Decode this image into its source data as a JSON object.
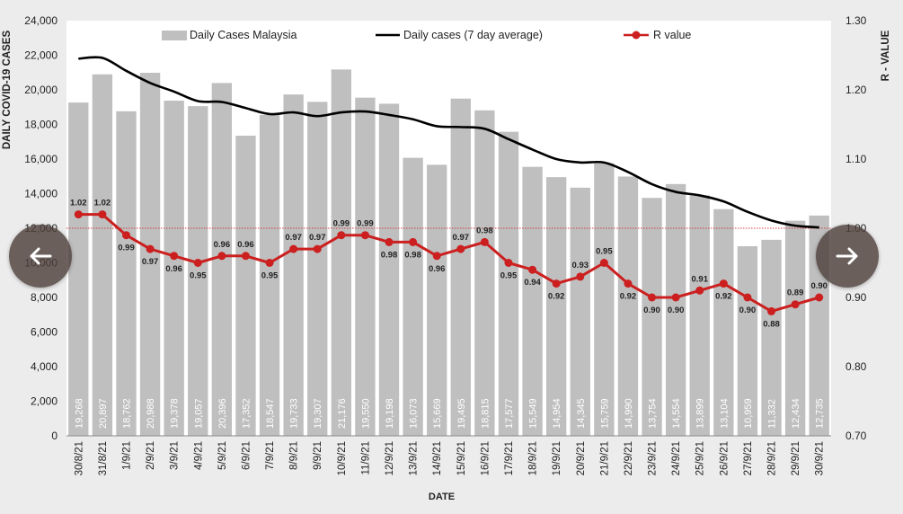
{
  "chart_data": {
    "type": "bar",
    "title": "",
    "xlabel": "DATE",
    "ylabel": "DAILY COVID-19 CASES",
    "y2label": "R - VALUE",
    "ylim": [
      0,
      24000
    ],
    "y2lim": [
      0.7,
      1.3
    ],
    "yticks": [
      "0",
      "2,000",
      "4,000",
      "6,000",
      "8,000",
      "10,000",
      "12,000",
      "14,000",
      "16,000",
      "18,000",
      "20,000",
      "22,000",
      "24,000"
    ],
    "y2ticks": [
      "0.70",
      "0.80",
      "0.90",
      "1.00",
      "1.10",
      "1.20",
      "1.30"
    ],
    "legend_position": "top",
    "reference_line": 1.0,
    "categories": [
      "30/8/21",
      "31/8/21",
      "1/9/21",
      "2/9/21",
      "3/9/21",
      "4/9/21",
      "5/9/21",
      "6/9/21",
      "7/9/21",
      "8/9/21",
      "9/9/21",
      "10/9/21",
      "11/9/21",
      "12/9/21",
      "13/9/21",
      "14/9/21",
      "15/9/21",
      "16/9/21",
      "17/9/21",
      "18/9/21",
      "19/9/21",
      "20/9/21",
      "21/9/21",
      "22/9/21",
      "23/9/21",
      "24/9/21",
      "25/9/21",
      "26/9/21",
      "27/9/21",
      "28/9/21",
      "29/9/21",
      "30/9/21"
    ],
    "series": [
      {
        "name": "Daily Cases Malaysia",
        "type": "bar",
        "color": "#bfbfbf",
        "values": [
          19268,
          20897,
          18762,
          20988,
          19378,
          19057,
          20396,
          17352,
          18547,
          19733,
          19307,
          21176,
          19550,
          19198,
          16073,
          15669,
          19495,
          18815,
          17577,
          15549,
          14954,
          14345,
          15759,
          14990,
          13754,
          14554,
          13899,
          13104,
          10959,
          11332,
          12434,
          12735
        ],
        "labels": [
          "19,268",
          "20,897",
          "18,762",
          "20,988",
          "19,378",
          "19,057",
          "20,396",
          "17,352",
          "18,547",
          "19,733",
          "19,307",
          "21,176",
          "19,550",
          "19,198",
          "16,073",
          "15,669",
          "19,495",
          "18,815",
          "17,577",
          "15,549",
          "14,954",
          "14,345",
          "15,759",
          "14,990",
          "13,754",
          "14,554",
          "13,899",
          "13,104",
          "10,959",
          "11,332",
          "12,434",
          "12,735"
        ]
      },
      {
        "name": "Daily cases (7 day average)",
        "type": "line",
        "color": "#000000",
        "values": [
          21800,
          21850,
          21100,
          20400,
          19900,
          19350,
          19300,
          18950,
          18600,
          18700,
          18480,
          18700,
          18750,
          18550,
          18300,
          17900,
          17850,
          17750,
          17150,
          16550,
          16000,
          15800,
          15800,
          15250,
          14550,
          14100,
          13900,
          13550,
          12950,
          12450,
          12150,
          12050
        ]
      },
      {
        "name": "R value",
        "type": "line",
        "axis": "right",
        "color": "#cc1f1f",
        "values": [
          1.02,
          1.02,
          0.99,
          0.97,
          0.96,
          0.95,
          0.96,
          0.96,
          0.95,
          0.97,
          0.97,
          0.99,
          0.99,
          0.98,
          0.98,
          0.96,
          0.97,
          0.98,
          0.95,
          0.94,
          0.92,
          0.93,
          0.95,
          0.92,
          0.9,
          0.9,
          0.91,
          0.92,
          0.9,
          0.88,
          0.89,
          0.9
        ],
        "labels": [
          "1.02",
          "1.02",
          "0.99",
          "0.97",
          "0.96",
          "0.95",
          "0.96",
          "0.96",
          "0.95",
          "0.97",
          "0.97",
          "0.99",
          "0.99",
          "0.98",
          "0.98",
          "0.96",
          "0.97",
          "0.98",
          "0.95",
          "0.94",
          "0.92",
          "0.93",
          "0.95",
          "0.92",
          "0.90",
          "0.90",
          "0.91",
          "0.92",
          "0.90",
          "0.88",
          "0.89",
          "0.90"
        ]
      }
    ]
  },
  "nav": {
    "prev_icon": "arrow-left-icon",
    "next_icon": "arrow-right-icon"
  }
}
